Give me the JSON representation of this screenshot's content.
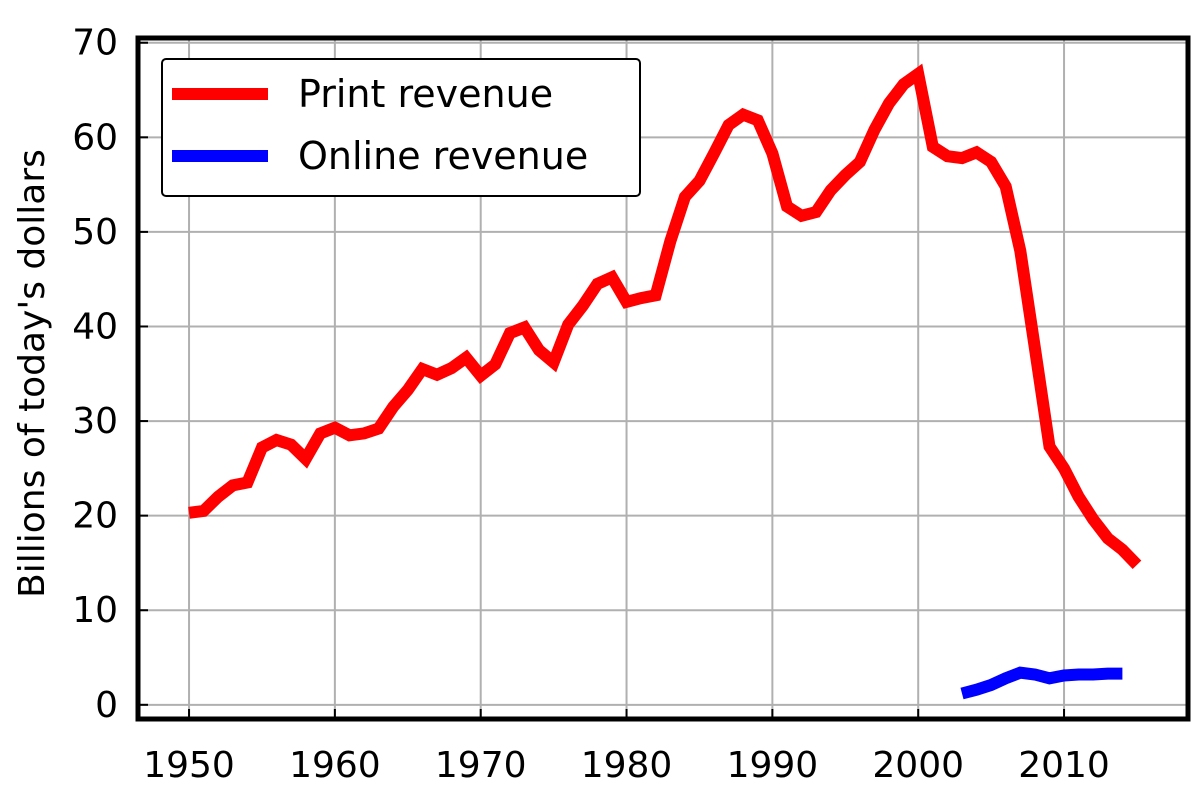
{
  "chart_data": {
    "type": "line",
    "title": "",
    "xlabel": "",
    "ylabel": "Billions of today's dollars",
    "xlim": [
      1946.5,
      2018.5
    ],
    "ylim": [
      -1.5,
      70.5
    ],
    "xticks": [
      1950,
      1960,
      1970,
      1980,
      1990,
      2000,
      2010
    ],
    "yticks": [
      0,
      10,
      20,
      30,
      40,
      50,
      60,
      70
    ],
    "grid": true,
    "legend_position": "top-left",
    "series": [
      {
        "name": "Print revenue",
        "color": "#ff0000",
        "x": [
          1950,
          1951,
          1952,
          1953,
          1954,
          1955,
          1956,
          1957,
          1958,
          1959,
          1960,
          1961,
          1962,
          1963,
          1964,
          1965,
          1966,
          1967,
          1968,
          1969,
          1970,
          1971,
          1972,
          1973,
          1974,
          1975,
          1976,
          1977,
          1978,
          1979,
          1980,
          1981,
          1982,
          1983,
          1984,
          1985,
          1986,
          1987,
          1988,
          1989,
          1990,
          1991,
          1992,
          1993,
          1994,
          1995,
          1996,
          1997,
          1998,
          1999,
          2000,
          2001,
          2002,
          2003,
          2004,
          2005,
          2006,
          2007,
          2008,
          2009,
          2010,
          2011,
          2012,
          2013,
          2014,
          2015
        ],
        "y": [
          20.3,
          20.5,
          22.0,
          23.2,
          23.5,
          27.2,
          28.0,
          27.5,
          26.0,
          28.7,
          29.3,
          28.5,
          28.7,
          29.2,
          31.5,
          33.3,
          35.5,
          34.9,
          35.6,
          36.7,
          34.8,
          36.0,
          39.3,
          39.9,
          37.5,
          36.2,
          40.2,
          42.2,
          44.5,
          45.2,
          42.6,
          43.0,
          43.3,
          49.0,
          53.7,
          55.4,
          58.3,
          61.3,
          62.4,
          61.8,
          58.3,
          52.7,
          51.7,
          52.1,
          54.4,
          56.0,
          57.4,
          60.8,
          63.6,
          65.6,
          66.7,
          59.0,
          58.0,
          57.8,
          58.4,
          57.4,
          54.8,
          48.0,
          37.7,
          27.3,
          25.0,
          22.0,
          19.6,
          17.6,
          16.4,
          14.8
        ]
      },
      {
        "name": "Online revenue",
        "color": "#0000ff",
        "x": [
          2003,
          2004,
          2005,
          2006,
          2007,
          2008,
          2009,
          2010,
          2011,
          2012,
          2013,
          2014
        ],
        "y": [
          1.2,
          1.6,
          2.1,
          2.8,
          3.4,
          3.2,
          2.8,
          3.1,
          3.2,
          3.2,
          3.3,
          3.3
        ]
      }
    ]
  }
}
